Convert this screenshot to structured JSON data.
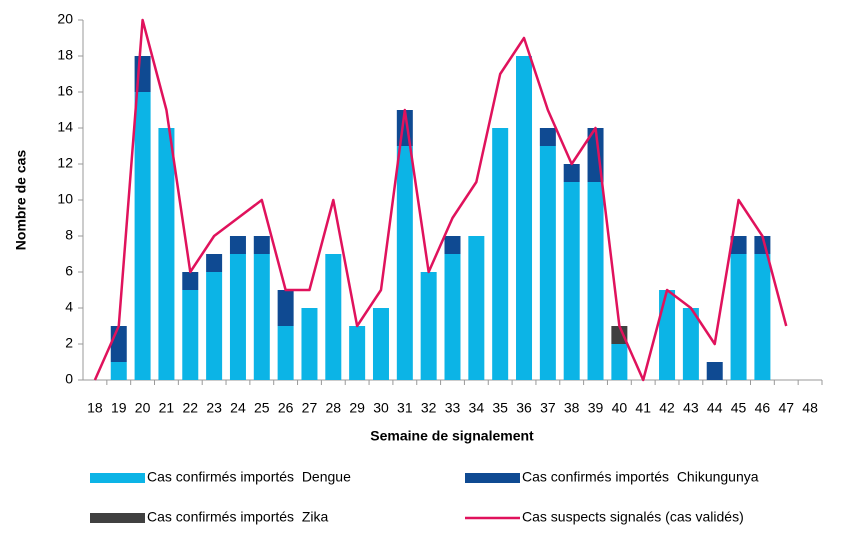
{
  "chart_data": {
    "type": "bar-line",
    "y_label": "Nombre de cas",
    "x_label": "Semaine de signalement",
    "categories": [
      "18",
      "19",
      "20",
      "21",
      "22",
      "23",
      "24",
      "25",
      "26",
      "27",
      "28",
      "29",
      "30",
      "31",
      "32",
      "33",
      "34",
      "35",
      "36",
      "37",
      "38",
      "39",
      "40",
      "41",
      "42",
      "43",
      "44",
      "45",
      "46",
      "47",
      "48"
    ],
    "series": [
      {
        "name": "Cas confirmés importés  Dengue",
        "color": "#0cb4e6",
        "kind": "bar",
        "values": [
          0,
          1,
          16,
          14,
          5,
          6,
          7,
          7,
          3,
          4,
          7,
          3,
          4,
          13,
          6,
          7,
          8,
          14,
          18,
          13,
          11,
          11,
          2,
          0,
          5,
          4,
          0,
          7,
          7,
          0,
          0
        ]
      },
      {
        "name": "Cas confirmés importés  Chikungunya",
        "color": "#0f4a92",
        "kind": "bar",
        "values": [
          0,
          2,
          2,
          0,
          1,
          1,
          1,
          1,
          2,
          0,
          0,
          0,
          0,
          2,
          0,
          1,
          0,
          0,
          0,
          1,
          1,
          3,
          0,
          0,
          0,
          0,
          1,
          1,
          1,
          0,
          0
        ]
      },
      {
        "name": "Cas confirmés importés  Zika",
        "color": "#404040",
        "kind": "bar",
        "values": [
          0,
          0,
          0,
          0,
          0,
          0,
          0,
          0,
          0,
          0,
          0,
          0,
          0,
          0,
          0,
          0,
          0,
          0,
          0,
          0,
          0,
          0,
          1,
          0,
          0,
          0,
          0,
          0,
          0,
          0,
          0
        ]
      },
      {
        "name": "Cas suspects signalés (cas validés)",
        "color": "#e0125c",
        "kind": "line",
        "values": [
          0,
          3,
          20,
          15,
          6,
          8,
          9,
          10,
          5,
          5,
          10,
          3,
          5,
          15,
          6,
          9,
          11,
          17,
          19,
          15,
          12,
          14,
          3,
          0,
          5,
          4,
          2,
          10,
          8,
          3,
          null
        ]
      }
    ],
    "ylim": [
      0,
      20
    ],
    "yticks": [
      0,
      2,
      4,
      6,
      8,
      10,
      12,
      14,
      16,
      18,
      20
    ],
    "grid": false
  }
}
